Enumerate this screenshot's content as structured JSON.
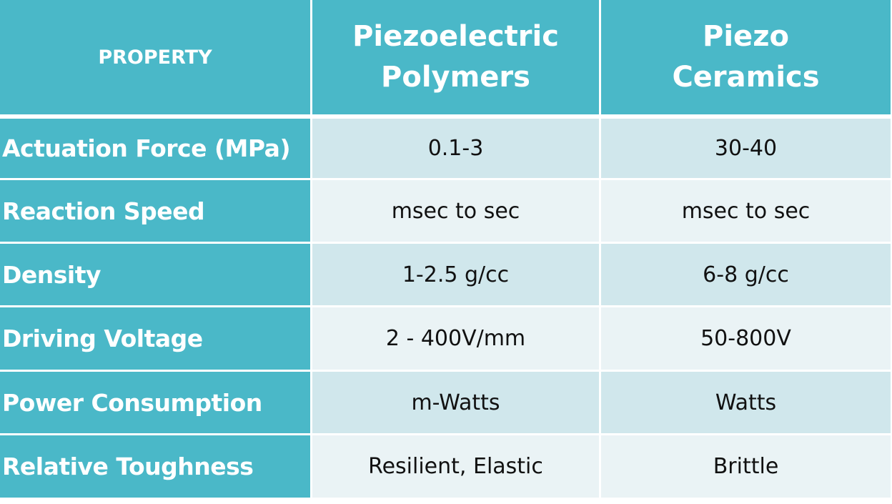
{
  "header": {
    "property": "PROPERTY",
    "col1_line1": "Piezoelectric",
    "col1_line2": "Polymers",
    "col2_line1": "Piezo",
    "col2_line2": "Ceramics"
  },
  "rows": [
    {
      "property": "Actuation Force (MPa)",
      "polymers": "0.1-3",
      "ceramics": "30-40"
    },
    {
      "property": "Reaction Speed",
      "polymers": "msec to sec",
      "ceramics": "msec to sec"
    },
    {
      "property": "Density",
      "polymers": "1-2.5 g/cc",
      "ceramics": "6-8 g/cc"
    },
    {
      "property": "Driving Voltage",
      "polymers": "2 - 400V/mm",
      "ceramics": "50-800V"
    },
    {
      "property": "Power Consumption",
      "polymers": "m-Watts",
      "ceramics": "Watts"
    },
    {
      "property": "Relative Toughness",
      "polymers": "Resilient, Elastic",
      "ceramics": "Brittle"
    }
  ],
  "colors": {
    "header": "#4AB8C8",
    "row_odd": "#D0E7EC",
    "row_even": "#EAF3F5"
  }
}
